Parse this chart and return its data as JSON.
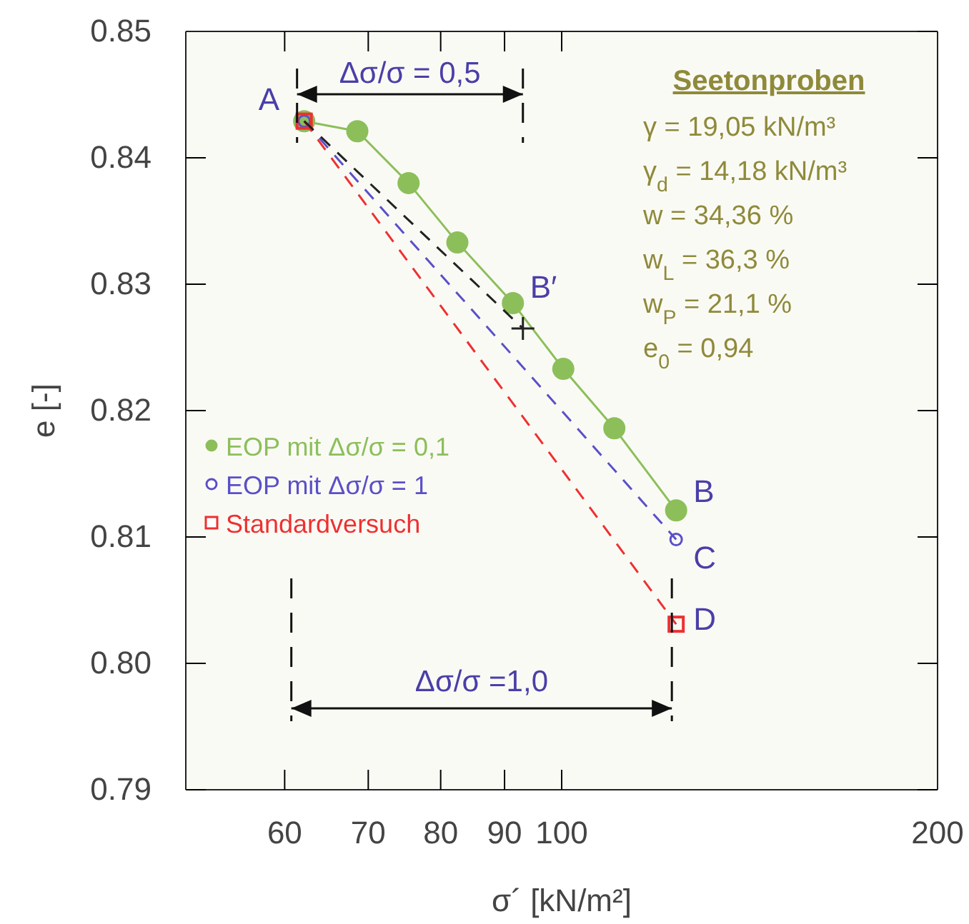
{
  "chart_data": {
    "type": "line",
    "xlabel": "σ´ [kN/m²]",
    "ylabel": "e [-]",
    "log": "x",
    "xlim": [
      50,
      200
    ],
    "xticks": [
      60,
      70,
      80,
      90,
      100,
      200
    ],
    "ylim": [
      0.79,
      0.85
    ],
    "yticks": [
      {
        "value": 0.79,
        "label": "0.79"
      },
      {
        "value": 0.8,
        "label": "0.80"
      },
      {
        "value": 0.81,
        "label": "0.81"
      },
      {
        "value": 0.82,
        "label": "0.82"
      },
      {
        "value": 0.83,
        "label": "0.83"
      },
      {
        "value": 0.84,
        "label": "0.84"
      },
      {
        "value": 0.85,
        "label": "0.85"
      }
    ],
    "grid": false,
    "legend": "left",
    "series": [
      {
        "name": "EOP mit Δσ/σ = 0,1",
        "color": "#8cbf5a",
        "x": [
          62.2,
          68.6,
          75.4,
          82.5,
          91.4,
          100.3,
          110.2,
          123.5
        ],
        "values": [
          0.8429,
          0.8421,
          0.838,
          0.8333,
          0.8285,
          0.8233,
          0.8186,
          0.8121
        ],
        "marker": "circle",
        "line_style": "solid"
      },
      {
        "name": "EOP mit Δσ/σ = 1",
        "color": "#5a50c8",
        "x": [
          62.2,
          123.5
        ],
        "values": [
          0.8429,
          0.8098
        ],
        "marker": "circle",
        "line_style": "dashed"
      },
      {
        "name": "Standardversuch",
        "color": "#ee3030",
        "x": [
          62.2,
          123.5
        ],
        "values": [
          0.8429,
          0.8031
        ],
        "marker": "square",
        "line_style": "dashed"
      },
      {
        "color": "#222222",
        "x": [
          62.2,
          93.1
        ],
        "values": [
          0.8429,
          0.8265
        ],
        "marker": "cross",
        "line_style": "dashed"
      }
    ],
    "annotations": [
      {
        "text": "A",
        "x": 62.2,
        "y": 0.8429
      },
      {
        "text": "B′",
        "x": 91.4,
        "y": 0.8285
      },
      {
        "text": "B",
        "x": 123.5,
        "y": 0.8121
      },
      {
        "text": "C",
        "x": 123.5,
        "y": 0.8098
      },
      {
        "text": "D",
        "x": 123.5,
        "y": 0.8031
      },
      "Δσ/σ = 0,5",
      "Δσ/σ =1,0",
      "Seetonproben",
      "γ = 19,05 kN/m³",
      "γ$_{d}$ = 14,18 kN/m³",
      "w =  34,36 %",
      "w$_{L}$ =  36,3 %",
      "w$_{P}$ = 21,1 %",
      "e$_{0}$ = 0,94"
    ]
  }
}
